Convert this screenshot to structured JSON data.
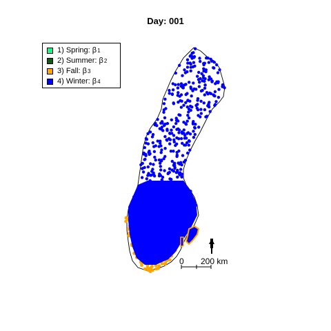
{
  "title": "Day: 001",
  "legend": {
    "items": [
      {
        "label": "1) Spring: β",
        "sub": "1",
        "color": "#1cf58c"
      },
      {
        "label": "2) Summer: β",
        "sub": "2",
        "color": "#0d5c14"
      },
      {
        "label": "3) Fall: β",
        "sub": "3",
        "color": "#ffa500"
      },
      {
        "label": "4) Winter: β",
        "sub": "4",
        "color": "#0000ff"
      }
    ]
  },
  "scale_bar": {
    "start": "0",
    "end": "200 km"
  },
  "north_arrow": "north-arrow-icon",
  "colors": {
    "outline": "#000000",
    "winter": "#0000ff",
    "fall": "#ffa500"
  }
}
